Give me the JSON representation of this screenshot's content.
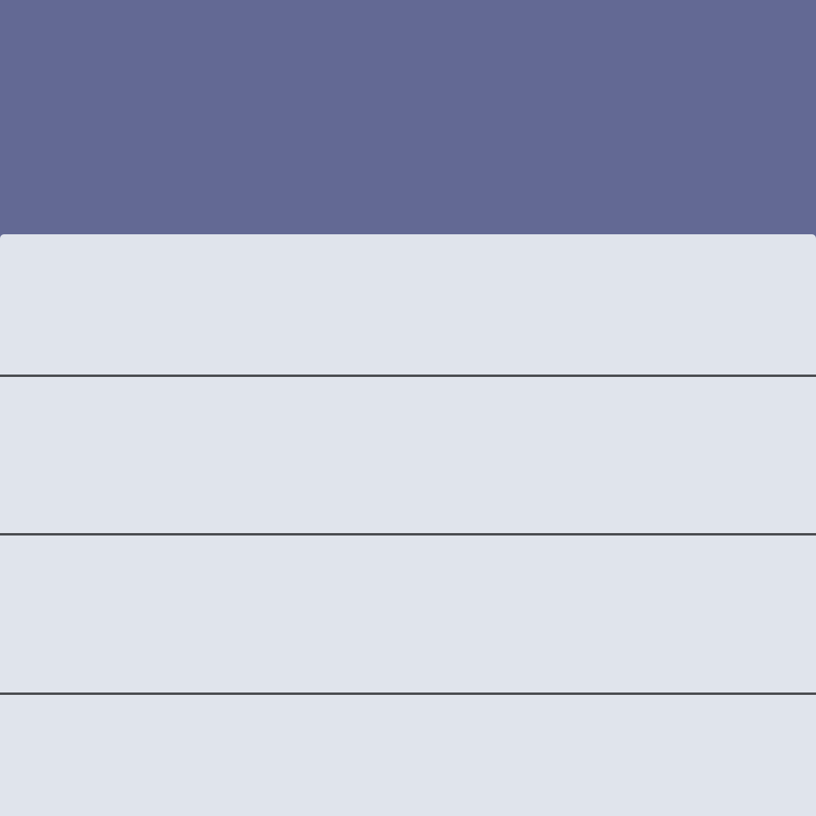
{
  "colors": {
    "header_background": "#636994",
    "sheet_background": "#e0e4ec",
    "divider": "#3a3b3f"
  },
  "rows": [
    {
      "label": ""
    },
    {
      "label": ""
    },
    {
      "label": ""
    },
    {
      "label": ""
    }
  ]
}
